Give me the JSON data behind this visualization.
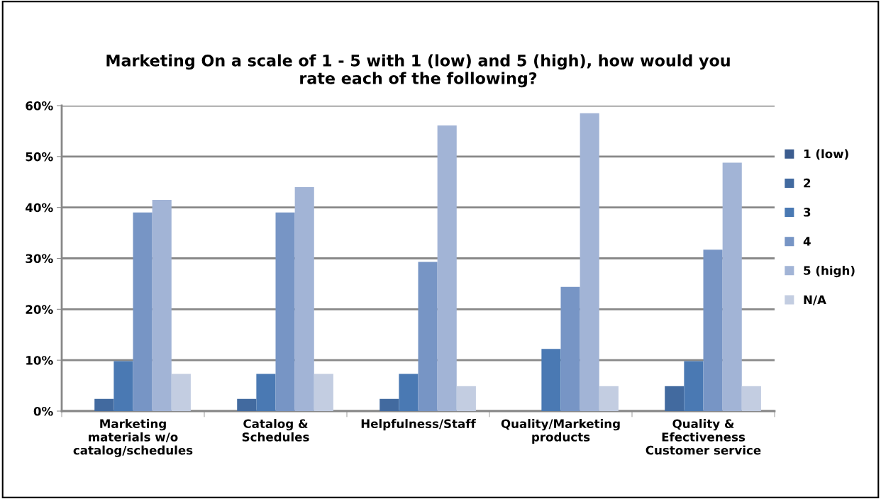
{
  "chart_data": {
    "type": "bar",
    "title": "Marketing On a scale of 1 - 5 with 1 (low) and 5 (high), how would you rate each of the following?",
    "categories": [
      "Marketing materials w/o catalog/schedules",
      "Catalog & Schedules",
      "Helpfulness/Staff",
      "Quality/Marketing products",
      "Quality & Efectiveness Customer service"
    ],
    "series": [
      {
        "name": "1 (low)",
        "color": "#3c5d8f",
        "values": [
          0,
          0,
          0,
          0,
          0
        ]
      },
      {
        "name": "2",
        "color": "#426a9f",
        "values": [
          2.4,
          2.4,
          2.4,
          0,
          4.9
        ]
      },
      {
        "name": "3",
        "color": "#4a79b3",
        "values": [
          9.8,
          7.3,
          7.3,
          12.2,
          9.8
        ]
      },
      {
        "name": "4",
        "color": "#7795c5",
        "values": [
          39.0,
          39.0,
          29.3,
          24.4,
          31.7
        ]
      },
      {
        "name": "5 (high)",
        "color": "#a2b4d6",
        "values": [
          41.5,
          44.0,
          56.1,
          58.5,
          48.8
        ]
      },
      {
        "name": "N/A",
        "color": "#c3cde1",
        "values": [
          7.3,
          7.3,
          4.9,
          4.9,
          4.9
        ]
      }
    ],
    "ylim": [
      0,
      60
    ],
    "yticks": [
      {
        "value": 0,
        "label": "0%"
      },
      {
        "value": 10,
        "label": "10%"
      },
      {
        "value": 20,
        "label": "20%"
      },
      {
        "value": 30,
        "label": "30%"
      },
      {
        "value": 40,
        "label": "40%"
      },
      {
        "value": 50,
        "label": "50%"
      },
      {
        "value": 60,
        "label": "60%"
      }
    ],
    "grid": "y",
    "legend": "right"
  }
}
